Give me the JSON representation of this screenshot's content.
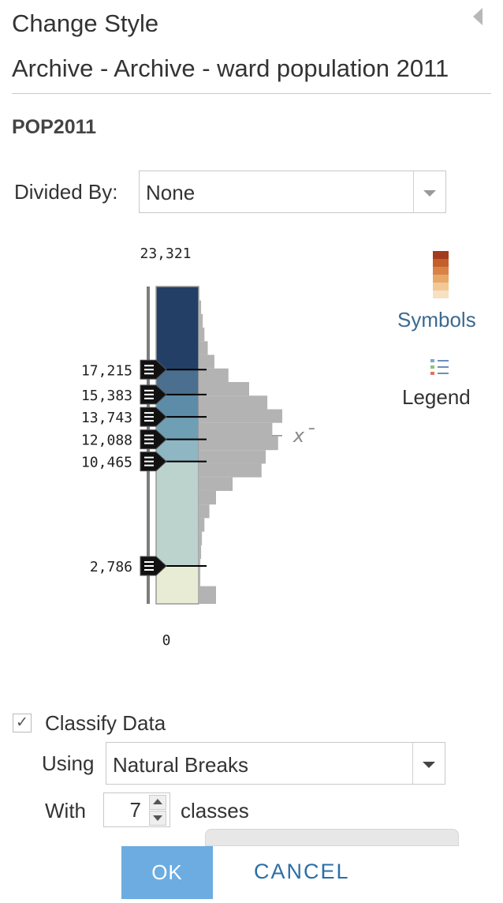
{
  "panel": {
    "title": "Change Style",
    "layer_name": "Archive - Archive - ward population 2011",
    "field_name": "POP2011"
  },
  "divided_by": {
    "label": "Divided By:",
    "value": "None"
  },
  "histogram": {
    "max_label": "23,321",
    "min_label": "0",
    "max": 23321,
    "min": 0,
    "mean_symbol": "x̄",
    "breaks": [
      {
        "value": 17215,
        "label": "17,215"
      },
      {
        "value": 15383,
        "label": "15,383"
      },
      {
        "value": 13743,
        "label": "13,743"
      },
      {
        "value": 12088,
        "label": "12,088"
      },
      {
        "value": 10465,
        "label": "10,465"
      },
      {
        "value": 2786,
        "label": "2,786"
      }
    ],
    "class_colors": [
      "#e8ecd4",
      "#bcd2cd",
      "#8fb6c3",
      "#6f9fb5",
      "#5d8ca8",
      "#4b6f8f",
      "#233f66"
    ],
    "counts": [
      {
        "from": 23321,
        "to": 22300,
        "count": 0
      },
      {
        "from": 22300,
        "to": 21300,
        "count": 2
      },
      {
        "from": 21300,
        "to": 20300,
        "count": 4
      },
      {
        "from": 20300,
        "to": 19300,
        "count": 6
      },
      {
        "from": 19300,
        "to": 18300,
        "count": 10
      },
      {
        "from": 18300,
        "to": 17300,
        "count": 18
      },
      {
        "from": 17300,
        "to": 16300,
        "count": 35
      },
      {
        "from": 16300,
        "to": 15300,
        "count": 60
      },
      {
        "from": 15300,
        "to": 14300,
        "count": 82
      },
      {
        "from": 14300,
        "to": 13300,
        "count": 100
      },
      {
        "from": 13300,
        "to": 12300,
        "count": 88
      },
      {
        "from": 12300,
        "to": 11300,
        "count": 95
      },
      {
        "from": 11300,
        "to": 10300,
        "count": 80
      },
      {
        "from": 10300,
        "to": 9300,
        "count": 75
      },
      {
        "from": 9300,
        "to": 8300,
        "count": 40
      },
      {
        "from": 8300,
        "to": 7300,
        "count": 20
      },
      {
        "from": 7300,
        "to": 6300,
        "count": 12
      },
      {
        "from": 6300,
        "to": 5300,
        "count": 6
      },
      {
        "from": 5300,
        "to": 4300,
        "count": 3
      },
      {
        "from": 4300,
        "to": 3300,
        "count": 2
      },
      {
        "from": 3300,
        "to": 2300,
        "count": 1
      },
      {
        "from": 2300,
        "to": 1300,
        "count": 1
      },
      {
        "from": 1300,
        "to": 0,
        "count": 20
      }
    ]
  },
  "symbols": {
    "label": "Symbols",
    "swatch": [
      "#a33a1e",
      "#c45f2c",
      "#d98246",
      "#e8a868",
      "#f2c996",
      "#f8e1c0"
    ]
  },
  "legend": {
    "label": "Legend"
  },
  "classify": {
    "label": "Classify Data",
    "checked": true,
    "check_glyph": "✓"
  },
  "using": {
    "label": "Using",
    "value": "Natural Breaks"
  },
  "with": {
    "label": "With",
    "value": "7",
    "suffix": "classes"
  },
  "buttons": {
    "ok": "OK",
    "cancel": "CANCEL"
  }
}
